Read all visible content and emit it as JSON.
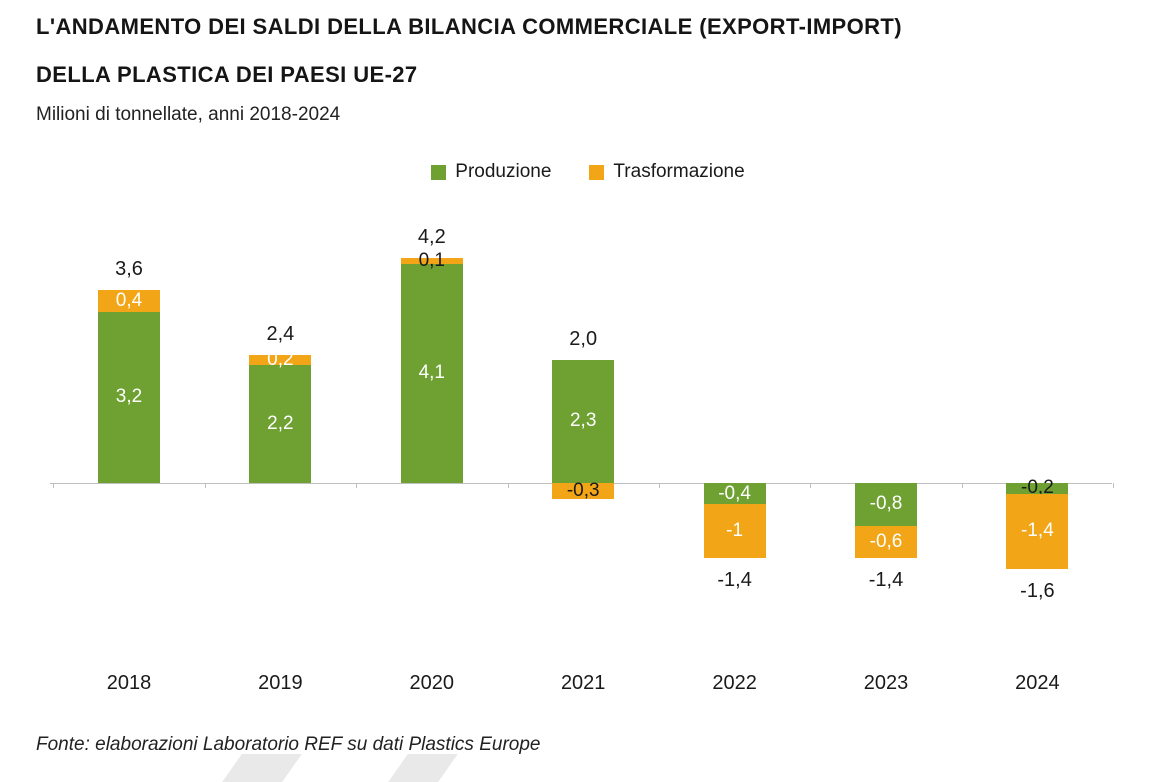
{
  "title": {
    "line1": "L'ANDAMENTO DEI SALDI DELLA BILANCIA COMMERCIALE (EXPORT-IMPORT)",
    "line2": "DELLA PLASTICA DEI PAESI UE-27"
  },
  "subtitle": "Milioni di tonnellate, anni 2018-2024",
  "legend": {
    "items": [
      {
        "label": "Produzione"
      },
      {
        "label": "Trasformazione"
      }
    ]
  },
  "footer": "Fonte: elaborazioni Laboratorio REF su dati Plastics Europe",
  "colors": {
    "produzione": "#6ea032",
    "trasformazione": "#f2a516",
    "axis": "#bfbfbf",
    "text": "#1a1a1a"
  },
  "chart_data": {
    "type": "bar",
    "stacked": true,
    "title": "L'ANDAMENTO DEI SALDI DELLA BILANCIA COMMERCIALE (EXPORT-IMPORT) DELLA PLASTICA DEI PAESI UE-27",
    "unit": "Milioni di tonnellate",
    "categories": [
      "2018",
      "2019",
      "2020",
      "2021",
      "2022",
      "2023",
      "2024"
    ],
    "series": [
      {
        "name": "Produzione",
        "color": "#6ea032",
        "values": [
          3.2,
          2.2,
          4.1,
          2.3,
          -0.4,
          -0.8,
          -0.2
        ],
        "labels": [
          "3,2",
          "2,2",
          "4,1",
          "2,3",
          "-0,4",
          "-0,8",
          "-0,2"
        ],
        "label_colors": [
          "white",
          "white",
          "white",
          "white",
          "white",
          "white",
          "dark"
        ]
      },
      {
        "name": "Trasformazione",
        "color": "#f2a516",
        "values": [
          0.4,
          0.2,
          0.1,
          -0.3,
          -1.0,
          -0.6,
          -1.4
        ],
        "labels": [
          "0,4",
          "0,2",
          "0,1",
          "-0,3",
          "-1",
          "-0,6",
          "-1,4"
        ],
        "label_colors": [
          "white",
          "white",
          "dark",
          "dark",
          "white",
          "white",
          "white"
        ]
      }
    ],
    "totals": [
      3.6,
      2.4,
      4.2,
      2.0,
      -1.4,
      -1.4,
      -1.6
    ],
    "total_labels": [
      "3,6",
      "2,4",
      "4,2",
      "2,0",
      "-1,4",
      "-1,4",
      "-1,6"
    ],
    "ylim": [
      -2.0,
      4.6
    ],
    "legend_position": "top",
    "grid": false
  }
}
